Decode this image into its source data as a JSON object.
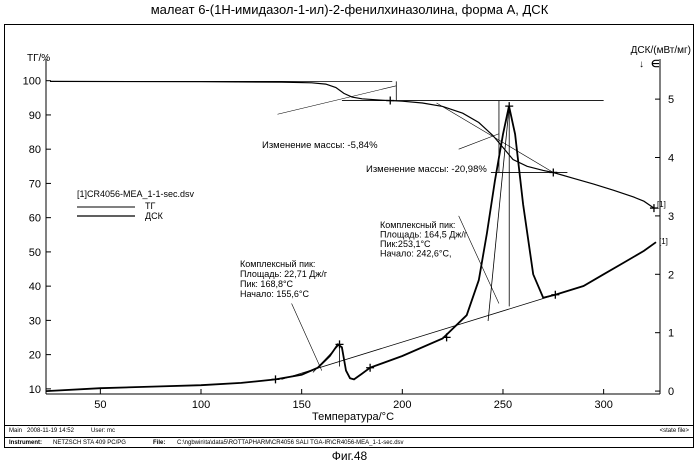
{
  "title": "малеат 6-(1Н-имидазол-1-ил)-2-фенилхиназолина, форма А, ДСК",
  "caption": "Фиг.48",
  "footer": {
    "main_label": "Main",
    "date": "2008-11-19 14:52",
    "user": "User: mc",
    "state_file": "<state file>",
    "instrument_label": "Instrument:",
    "instrument": "NETZSCH STA 409 PC/PG",
    "file_label": "File:",
    "file": "C:\\ngbwin\\ta\\data5\\ROTTAPHARM\\CR4056 SALI TGA-IR\\CR4056-MEA_1-1-sec.dsv"
  },
  "chart_data": {
    "type": "line",
    "title": "малеат 6-(1Н-имидазол-1-ил)-2-фенилхиназолина, форма А, ДСК",
    "xlabel": "Температура/°C",
    "ylabel_left": "ТГ/%",
    "ylabel_right": "ДСК/(мВт/мг)",
    "right_axis_arrow": "↓",
    "right_axis_symbol": "∈",
    "xlim": [
      23,
      328
    ],
    "ylim_left": [
      8.5,
      104
    ],
    "ylim_right": [
      -0.05,
      5.55
    ],
    "x_ticks": [
      50,
      100,
      150,
      200,
      250,
      300
    ],
    "y_left_ticks": [
      10,
      20,
      30,
      40,
      50,
      60,
      70,
      80,
      90,
      100
    ],
    "y_right_ticks": [
      0,
      1,
      2,
      3,
      4,
      5
    ],
    "legend": {
      "file": "[1]CR4056-MEA_1-1-sec.dsv",
      "entries": [
        "ТГ",
        "ДСК"
      ]
    },
    "series": [
      {
        "name": "ТГ",
        "axis": "left",
        "x": [
          25,
          100,
          140,
          155,
          162,
          167,
          171,
          175,
          180,
          190,
          200,
          210,
          220,
          230,
          238,
          245,
          250,
          255,
          262,
          270,
          275,
          285,
          295,
          305,
          315,
          320,
          325
        ],
        "y": [
          99.8,
          99.7,
          99.6,
          99.4,
          99.0,
          98.0,
          96.3,
          95.2,
          94.7,
          94.3,
          94.0,
          93.5,
          92.5,
          90.5,
          87.8,
          84.0,
          80.5,
          77.0,
          75.0,
          73.8,
          73.2,
          71.5,
          69.8,
          68.0,
          66.0,
          64.8,
          62.8
        ]
      },
      {
        "name": "ДСК",
        "axis": "right",
        "x": [
          23,
          50,
          80,
          100,
          120,
          137,
          150,
          158,
          164,
          168,
          170,
          172,
          174,
          176,
          180,
          184,
          200,
          220,
          232,
          238,
          242,
          246,
          250,
          253,
          256,
          260,
          265,
          270,
          276,
          290,
          300,
          310,
          320,
          326
        ],
        "y": [
          0.0,
          0.05,
          0.08,
          0.1,
          0.14,
          0.2,
          0.28,
          0.4,
          0.6,
          0.8,
          0.75,
          0.35,
          0.22,
          0.2,
          0.3,
          0.4,
          0.6,
          0.9,
          1.3,
          1.9,
          2.7,
          3.6,
          4.4,
          4.88,
          4.4,
          3.2,
          2.0,
          1.6,
          1.65,
          1.8,
          2.0,
          2.2,
          2.4,
          2.55
        ]
      }
    ],
    "annotations": [
      {
        "text": "Изменение массы: -5,84%"
      },
      {
        "text": "Изменение массы: -20,98%"
      },
      {
        "lines": [
          "Комплексный пик:",
          "Площадь: 22,71 Дж/г",
          "Пик: 168,8°C",
          "Начало: 155,6°C"
        ]
      },
      {
        "lines": [
          "Комплексный пик:",
          "Площадь: 164,5 Дж/г",
          "Пик:253,1°C",
          "Начало: 242,6°C,"
        ]
      }
    ],
    "curve_end_labels": [
      "[1]",
      "[1]"
    ],
    "grid": false
  }
}
